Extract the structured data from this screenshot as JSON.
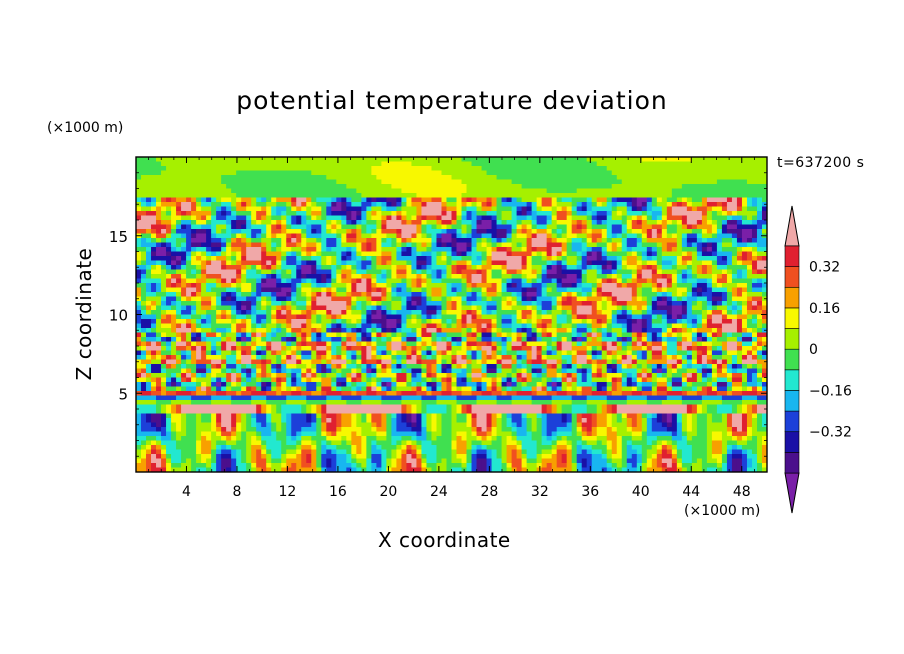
{
  "title": "potential temperature deviation",
  "time_label": "t=637200 s",
  "unit_top": "(×1000 m)",
  "unit_bottom": "(×1000 m)",
  "chart_data": {
    "type": "heatmap",
    "title": "potential temperature deviation",
    "xlabel": "X coordinate",
    "ylabel": "Z coordinate",
    "x_unit": "(×1000 m)",
    "y_unit": "(×1000 m)",
    "xlim": [
      0,
      50
    ],
    "ylim": [
      0,
      20
    ],
    "xticks": [
      4,
      8,
      12,
      16,
      20,
      24,
      28,
      32,
      36,
      40,
      44,
      48
    ],
    "yticks": [
      5,
      10,
      15
    ],
    "grid": false,
    "colorbar": {
      "placement": "right",
      "levels": [
        -0.48,
        -0.4,
        -0.32,
        -0.24,
        -0.16,
        -0.08,
        0,
        0.08,
        0.16,
        0.24,
        0.32,
        0.4
      ],
      "tick_labels": [
        "−0.32",
        "−0.16",
        "0",
        "0.16",
        "0.32"
      ],
      "tick_values": [
        -0.32,
        -0.16,
        0,
        0.16,
        0.32
      ],
      "colors": [
        "#7a1fa8",
        "#4b0f8c",
        "#1a10a6",
        "#1c40d9",
        "#18b6f0",
        "#22e8d0",
        "#40e050",
        "#a6f000",
        "#f8f800",
        "#f8a000",
        "#f05020",
        "#e02030",
        "#f0a8a8"
      ]
    },
    "vmin": -0.48,
    "vmax": 0.48
  }
}
